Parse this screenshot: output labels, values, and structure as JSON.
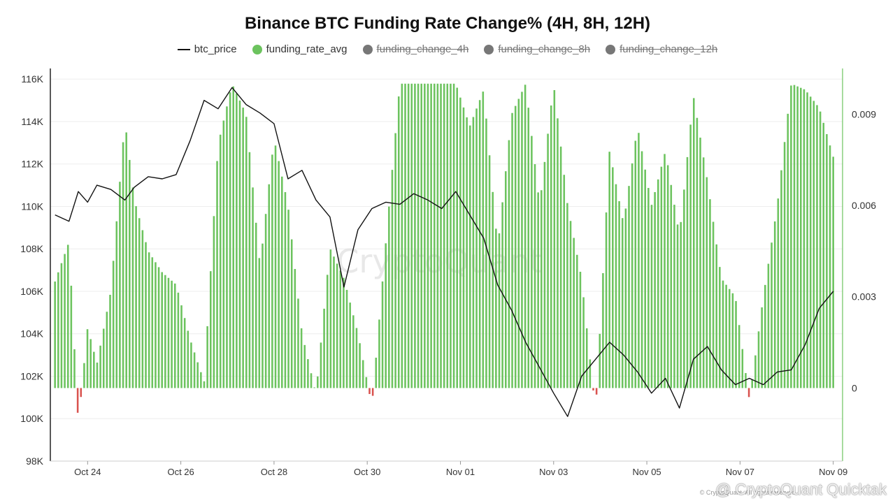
{
  "chart_data": {
    "type": "bar+line",
    "title": "Binance BTC Funding Rate Change% (4H, 8H, 12H)",
    "legend": [
      {
        "name": "btc_price",
        "marker": "line",
        "color": "#111111",
        "active": true
      },
      {
        "name": "funding_rate_avg",
        "marker": "dot",
        "color": "#6cc35e",
        "active": true
      },
      {
        "name": "funding_change_4h",
        "marker": "dot",
        "color": "#777777",
        "active": false
      },
      {
        "name": "funding_change_8h",
        "marker": "dot",
        "color": "#777777",
        "active": false
      },
      {
        "name": "funding_change_12h",
        "marker": "dot",
        "color": "#777777",
        "active": false
      }
    ],
    "x_tick_labels": [
      "Oct 24",
      "Oct 26",
      "Oct 28",
      "Oct 30",
      "Nov 01",
      "Nov 03",
      "Nov 05",
      "Nov 07",
      "Nov 09"
    ],
    "x_range_days": [
      -0.8,
      16.2
    ],
    "y_left": {
      "name": "btc_price",
      "range": [
        98000,
        116500
      ],
      "tick_values": [
        98000,
        100000,
        102000,
        104000,
        106000,
        108000,
        110000,
        112000,
        114000,
        116000
      ],
      "tick_labels": [
        "98K",
        "100K",
        "102K",
        "104K",
        "106K",
        "108K",
        "110K",
        "112K",
        "114K",
        "116K"
      ]
    },
    "y_right": {
      "name": "funding_rate_avg",
      "range": [
        -0.0024,
        0.0105
      ],
      "tick_values": [
        0,
        0.003,
        0.006,
        0.009
      ],
      "tick_labels": [
        "0",
        "0.003",
        "0.006",
        "0.009"
      ]
    },
    "btc_price_series": {
      "days": [
        -0.7,
        -0.4,
        -0.2,
        0.0,
        0.2,
        0.5,
        0.8,
        1.0,
        1.3,
        1.6,
        1.9,
        2.2,
        2.5,
        2.8,
        3.1,
        3.4,
        3.7,
        4.0,
        4.3,
        4.6,
        4.9,
        5.2,
        5.5,
        5.8,
        6.1,
        6.4,
        6.7,
        7.0,
        7.3,
        7.6,
        7.9,
        8.2,
        8.5,
        8.8,
        9.1,
        9.4,
        9.7,
        10.0,
        10.3,
        10.6,
        10.9,
        11.2,
        11.5,
        11.8,
        12.1,
        12.4,
        12.7,
        13.0,
        13.3,
        13.6,
        13.9,
        14.2,
        14.5,
        14.8,
        15.1,
        15.4,
        15.7,
        16.0
      ],
      "values": [
        109600,
        109300,
        110700,
        110200,
        111000,
        110800,
        110300,
        110900,
        111400,
        111300,
        111500,
        113100,
        115000,
        114600,
        115600,
        114800,
        114400,
        113900,
        111300,
        111700,
        110300,
        109500,
        106200,
        108900,
        109900,
        110200,
        110100,
        110600,
        110300,
        109900,
        110700,
        109600,
        108500,
        106300,
        105100,
        103600,
        102400,
        101200,
        100100,
        102000,
        102800,
        103600,
        103000,
        102200,
        101200,
        101900,
        100500,
        102800,
        103400,
        102300,
        101600,
        101900,
        101600,
        102200,
        102300,
        103500,
        105200,
        106000
      ]
    },
    "funding_rate_avg_series": {
      "days": [
        -0.7,
        -0.4,
        -0.2,
        0.0,
        0.2,
        0.5,
        0.8,
        1.0,
        1.3,
        1.6,
        1.9,
        2.2,
        2.5,
        2.8,
        3.1,
        3.4,
        3.7,
        4.0,
        4.3,
        4.6,
        4.9,
        5.2,
        5.5,
        5.8,
        6.1,
        6.4,
        6.7,
        7.0,
        7.3,
        7.6,
        7.9,
        8.2,
        8.5,
        8.8,
        9.1,
        9.4,
        9.7,
        10.0,
        10.3,
        10.6,
        10.9,
        11.2,
        11.5,
        11.8,
        12.1,
        12.4,
        12.7,
        13.0,
        13.3,
        13.6,
        13.9,
        14.2,
        14.5,
        14.8,
        15.1,
        15.4,
        15.7,
        16.0
      ],
      "values": [
        0.0035,
        0.0048,
        -0.0012,
        0.002,
        0.0008,
        0.0032,
        0.0088,
        0.0062,
        0.0045,
        0.0038,
        0.0034,
        0.0016,
        0.0002,
        0.008,
        0.01,
        0.009,
        0.004,
        0.0082,
        0.006,
        0.0018,
        -0.0002,
        0.0046,
        0.0036,
        0.0018,
        -0.0006,
        0.0048,
        0.01,
        0.01,
        0.01,
        0.01,
        0.01,
        0.0086,
        0.0098,
        0.0046,
        0.009,
        0.01,
        0.006,
        0.01,
        0.006,
        0.0036,
        -0.0008,
        0.0078,
        0.0054,
        0.0086,
        0.006,
        0.0078,
        0.005,
        0.0096,
        0.0068,
        0.0036,
        0.003,
        -0.0004,
        0.003,
        0.006,
        0.01,
        0.0098,
        0.0092,
        0.0076
      ]
    },
    "watermark": "CryptoQuant",
    "footer_brand": "@ CryptoQuant Quicktak",
    "footer_credit": "© CryptoQuant. All rights reserved."
  }
}
